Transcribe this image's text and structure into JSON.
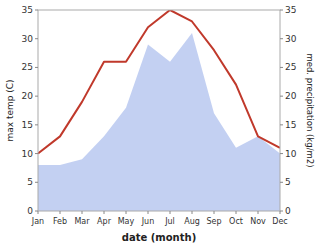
{
  "chart_data": {
    "type": "line",
    "categories": [
      "Jan",
      "Feb",
      "Mar",
      "Apr",
      "May",
      "Jun",
      "Jul",
      "Aug",
      "Sep",
      "Oct",
      "Nov",
      "Dec"
    ],
    "series": [
      {
        "type": "area",
        "color": "#b8c8f0",
        "values": [
          8,
          8,
          9,
          13,
          18,
          29,
          26,
          31,
          17,
          11,
          13,
          10
        ]
      },
      {
        "type": "line",
        "color": "#c0392b",
        "axis": "y2",
        "values": [
          10,
          13,
          19,
          26,
          26,
          32,
          35,
          33,
          28,
          22,
          13,
          11
        ]
      }
    ],
    "xlabel": "date (month)",
    "ylabel": "max temp (C)",
    "y2label": "med. precipitation (kg/m2)",
    "ylim": [
      0,
      35
    ],
    "yticks": [
      0,
      5,
      10,
      15,
      20,
      25,
      30,
      35
    ],
    "y2lim": [
      0,
      35
    ],
    "y2ticks": [
      0,
      5,
      10,
      15,
      20,
      25,
      30,
      35
    ],
    "grid": false
  }
}
